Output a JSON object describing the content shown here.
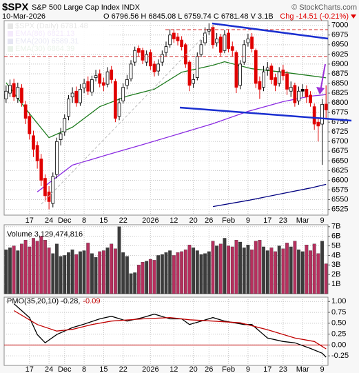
{
  "chart_data": [
    {
      "type": "candlestick",
      "title": "$SPX",
      "subtitle": "S&P 500 Large Cap Index  INDX",
      "date": "10-Mar-2026",
      "source": "© StockCharts.com",
      "quote": "O 6796.56  H 6845.08  L 6759.74  C 6781.48  V 3.1B",
      "change": "Chg -14.51 (-0.21%)",
      "name": "$SPX (Daily) 6781.48",
      "up_color": "#000000",
      "down_color": "#e00000",
      "change_color": "#e00000",
      "categories": [
        null,
        null,
        null,
        null,
        null,
        null,
        "17",
        null,
        null,
        null,
        null,
        "24",
        null,
        null,
        null,
        "Dec",
        null,
        null,
        null,
        null,
        "8",
        null,
        null,
        null,
        null,
        "15",
        null,
        null,
        null,
        null,
        "22",
        null,
        null,
        null,
        null,
        null,
        null,
        "2026",
        null,
        null,
        null,
        null,
        null,
        "12",
        null,
        null,
        null,
        null,
        "20",
        null,
        null,
        null,
        "26",
        null,
        null,
        null,
        null,
        "Feb",
        null,
        null,
        null,
        null,
        "9",
        null,
        null,
        null,
        null,
        "17",
        null,
        null,
        null,
        "23",
        null,
        null,
        null,
        null,
        "Mar",
        null,
        null,
        null,
        null,
        "9",
        null
      ],
      "open": [
        6810,
        6825,
        6850,
        6812,
        6838,
        6795,
        6765,
        6715,
        6690,
        6655,
        6605,
        6570,
        6540,
        6615,
        6705,
        6725,
        6765,
        6815,
        6830,
        6800,
        6838,
        6855,
        6828,
        6865,
        6875,
        6852,
        6848,
        6885,
        6855,
        6765,
        6805,
        6845,
        6862,
        6905,
        6940,
        6935,
        6905,
        6930,
        6900,
        6882,
        6905,
        6930,
        6950,
        6980,
        6970,
        6962,
        6950,
        6905,
        6850,
        6865,
        6925,
        6955,
        6985,
        6995,
        6955,
        6970,
        6935,
        6980,
        6945,
        6930,
        6845,
        6905,
        6955,
        6970,
        6935,
        6855,
        6840,
        6885,
        6895,
        6865,
        6850,
        6885,
        6875,
        6830,
        6845,
        6805,
        6835,
        6835,
        6820,
        6790,
        6750,
        6745,
        6796.56
      ],
      "high": [
        6845,
        6860,
        6862,
        6852,
        6848,
        6805,
        6775,
        6728,
        6700,
        6668,
        6615,
        6585,
        6620,
        6710,
        6735,
        6770,
        6820,
        6840,
        6842,
        6848,
        6862,
        6868,
        6870,
        6885,
        6886,
        6865,
        6892,
        6895,
        6862,
        6812,
        6850,
        6872,
        6910,
        6945,
        6948,
        6942,
        6935,
        6938,
        6908,
        6912,
        6935,
        6958,
        6990,
        6988,
        6980,
        6972,
        6955,
        6910,
        6875,
        6930,
        6962,
        6995,
        7005,
        7000,
        6980,
        6978,
        6988,
        6990,
        6958,
        6935,
        6910,
        6962,
        6978,
        6980,
        6940,
        6868,
        6895,
        6905,
        6902,
        6875,
        6892,
        6898,
        6882,
        6855,
        6852,
        6842,
        6848,
        6845,
        6830,
        6798,
        6760,
        6810,
        6845.08
      ],
      "low": [
        6800,
        6815,
        6805,
        6800,
        6790,
        6745,
        6705,
        6660,
        6630,
        6585,
        6545,
        6525,
        6530,
        6605,
        6690,
        6715,
        6755,
        6800,
        6790,
        6792,
        6825,
        6820,
        6818,
        6855,
        6840,
        6830,
        6840,
        6850,
        6750,
        6755,
        6798,
        6835,
        6855,
        6895,
        6920,
        6900,
        6895,
        6885,
        6868,
        6870,
        6895,
        6920,
        6942,
        6955,
        6948,
        6935,
        6890,
        6830,
        6838,
        6858,
        6918,
        6948,
        6975,
        6940,
        6945,
        6920,
        6928,
        6930,
        6920,
        6825,
        6835,
        6898,
        6945,
        6930,
        6838,
        6810,
        6830,
        6870,
        6848,
        6830,
        6842,
        6858,
        6820,
        6815,
        6790,
        6795,
        6815,
        6800,
        6790,
        6730,
        6700,
        6640,
        6759.74
      ],
      "close": [
        6830,
        6845,
        6815,
        6840,
        6800,
        6760,
        6720,
        6680,
        6650,
        6600,
        6560,
        6545,
        6610,
        6700,
        6720,
        6760,
        6810,
        6825,
        6800,
        6835,
        6850,
        6830,
        6860,
        6870,
        6850,
        6845,
        6880,
        6860,
        6760,
        6800,
        6840,
        6860,
        6900,
        6935,
        6930,
        6910,
        6925,
        6895,
        6880,
        6900,
        6925,
        6945,
        6975,
        6965,
        6960,
        6945,
        6900,
        6845,
        6860,
        6920,
        6950,
        6980,
        6990,
        6950,
        6965,
        6930,
        6975,
        6940,
        6935,
        6840,
        6900,
        6950,
        6965,
        6940,
        6850,
        6835,
        6880,
        6890,
        6860,
        6845,
        6880,
        6870,
        6835,
        6840,
        6800,
        6830,
        6830,
        6815,
        6800,
        6745,
        6740,
        6796,
        6781.48
      ],
      "series": [
        {
          "name": "EMA(86) 6821.13",
          "color": "#8a2be2",
          "x": [
            8,
            17,
            26,
            35,
            44,
            53,
            62,
            71,
            78,
            82
          ],
          "values": [
            6570,
            6639,
            6666,
            6692,
            6719,
            6746,
            6778,
            6803,
            6817,
            6821.13
          ]
        },
        {
          "name": "EMA(200) 6589.31",
          "color": "#000080",
          "x": [
            53,
            62,
            71,
            78,
            82
          ],
          "values": [
            6532,
            6548,
            6566,
            6580,
            6589.31
          ]
        },
        {
          "name": "EMA(30) 6864.39",
          "color": "#1e7b1e",
          "x": [
            0,
            6,
            11,
            17,
            24,
            31,
            38,
            45,
            53,
            56,
            63,
            71,
            78,
            82
          ],
          "values": [
            6852,
            6772,
            6710,
            6737,
            6790,
            6817,
            6835,
            6879,
            6897,
            6906,
            6888,
            6879,
            6870,
            6864.39
          ]
        }
      ],
      "ylim": [
        6510,
        7012
      ],
      "yticks": [
        6525,
        6550,
        6575,
        6600,
        6625,
        6650,
        6675,
        6700,
        6725,
        6750,
        6775,
        6800,
        6825,
        6850,
        6875,
        6900,
        6925,
        6950,
        6975,
        7000
      ],
      "grid": true
    },
    {
      "type": "bar",
      "title": "Volume 3,129,474,816",
      "up_color": "#3c3c3c",
      "down_color": "#b5305e",
      "values": [
        4.6,
        4.8,
        5.0,
        4.5,
        5.2,
        5.6,
        4.9,
        5.8,
        5.5,
        6.0,
        5.6,
        4.8,
        4.2,
        5.2,
        3.9,
        4.0,
        4.3,
        4.6,
        4.1,
        4.4,
        4.5,
        5.3,
        4.2,
        3.8,
        4.4,
        4.5,
        4.8,
        5.2,
        4.7,
        7.0,
        4.3,
        3.9,
        2.1,
        2.2,
        3.0,
        3.3,
        3.4,
        3.6,
        3.5,
        4.0,
        4.1,
        4.3,
        4.5,
        4.0,
        4.3,
        4.4,
        4.6,
        5.1,
        4.8,
        4.5,
        4.1,
        4.2,
        4.4,
        5.5,
        5.0,
        5.2,
        5.8,
        5.0,
        4.9,
        5.6,
        5.4,
        4.8,
        5.1,
        4.6,
        5.5,
        5.6,
        4.9,
        4.5,
        4.8,
        4.4,
        5.0,
        4.7,
        5.3,
        4.9,
        5.5,
        4.6,
        4.4,
        5.1,
        4.5,
        5.2,
        4.2,
        5.5,
        3.13
      ],
      "ylim": [
        0,
        7.2
      ],
      "yticks": [
        {
          "value": 1,
          "label": "1B"
        },
        {
          "value": 2,
          "label": "2B"
        },
        {
          "value": 3,
          "label": "3B"
        },
        {
          "value": 4,
          "label": "4B"
        },
        {
          "value": 5,
          "label": "5B"
        },
        {
          "value": 6,
          "label": "6B"
        },
        {
          "value": 7,
          "label": "7B"
        }
      ],
      "grid": true
    },
    {
      "type": "line",
      "categories": [
        null,
        null,
        null,
        null,
        null,
        null,
        "17",
        null,
        null,
        null,
        null,
        "24",
        null,
        null,
        null,
        "Dec",
        null,
        null,
        null,
        null,
        "8",
        null,
        null,
        null,
        null,
        "15",
        null,
        null,
        null,
        null,
        "22",
        null,
        null,
        null,
        null,
        null,
        null,
        "2026",
        null,
        null,
        null,
        null,
        null,
        "12",
        null,
        null,
        null,
        null,
        "20",
        null,
        null,
        null,
        "26",
        null,
        null,
        null,
        null,
        "Feb",
        null,
        null,
        null,
        null,
        "9",
        null,
        null,
        null,
        null,
        "17",
        null,
        null,
        null,
        "23",
        null,
        null,
        null,
        null,
        "Mar",
        null,
        null,
        null,
        null,
        "9",
        null
      ],
      "series": [
        {
          "name": "PMO(35,20,10) -0.28,",
          "color": "#000000",
          "x": [
            2,
            6,
            8,
            10,
            13,
            17,
            20,
            24,
            27,
            31,
            35,
            38,
            42,
            45,
            47,
            50,
            53,
            56,
            61,
            63,
            67,
            71,
            74,
            78,
            81,
            82
          ],
          "values": [
            0.95,
            0.63,
            0.24,
            0.05,
            0.24,
            0.4,
            0.48,
            0.6,
            0.66,
            0.55,
            0.63,
            0.71,
            0.6,
            0.6,
            0.47,
            0.55,
            0.63,
            0.55,
            0.47,
            0.47,
            0.16,
            0.08,
            0.05,
            -0.08,
            -0.19,
            -0.28
          ]
        },
        {
          "name": "-0.09",
          "color": "#c00000",
          "x": [
            2,
            8,
            13,
            17,
            22,
            27,
            35,
            42,
            47,
            53,
            60,
            67,
            74,
            79,
            82
          ],
          "values": [
            0.79,
            0.47,
            0.32,
            0.36,
            0.47,
            0.55,
            0.6,
            0.63,
            0.58,
            0.55,
            0.51,
            0.35,
            0.16,
            0.08,
            -0.09
          ]
        }
      ],
      "reference_line": {
        "value": 0,
        "color": "#c00000"
      },
      "ylim": [
        -0.47,
        1.1
      ],
      "yticks": [
        {
          "value": -0.25,
          "label": "-0.25"
        },
        {
          "value": 0,
          "label": "0.00"
        },
        {
          "value": 0.25,
          "label": "0.25"
        },
        {
          "value": 0.5,
          "label": "0.50"
        },
        {
          "value": 0.75,
          "label": "0.75"
        },
        {
          "value": 1,
          "label": "1.00"
        }
      ],
      "grid": true
    }
  ]
}
